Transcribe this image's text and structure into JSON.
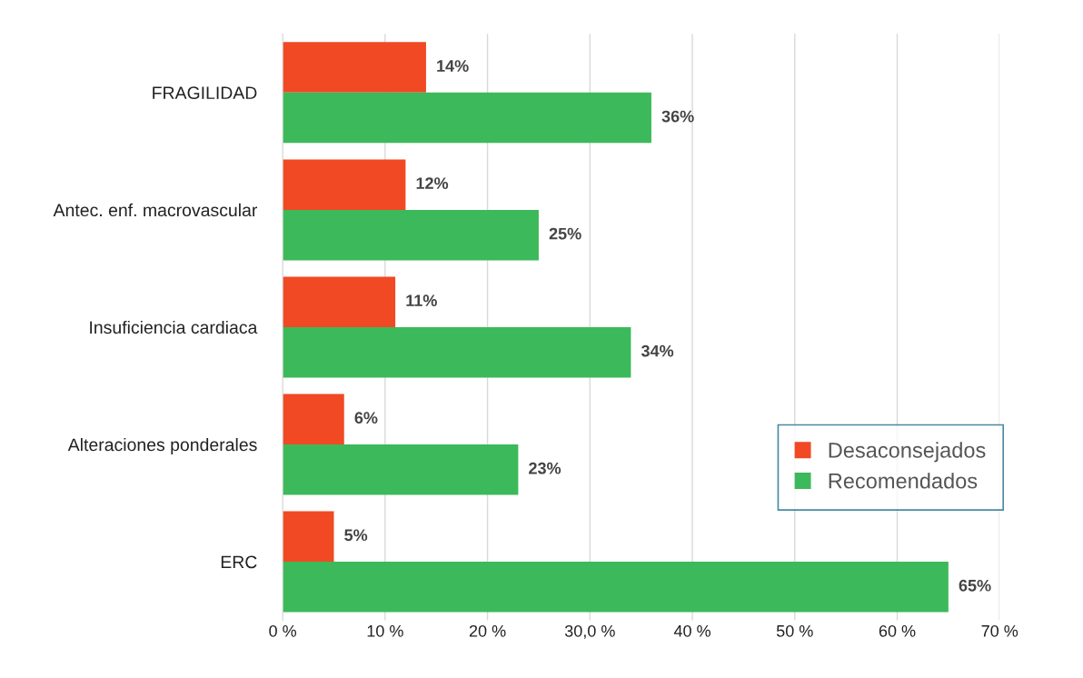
{
  "chart_data": {
    "type": "bar",
    "orientation": "horizontal",
    "categories": [
      "FRAGILIDAD",
      "Antec. enf. macrovascular",
      "Insuficiencia cardiaca",
      "Alteraciones ponderales",
      "ERC"
    ],
    "series": [
      {
        "name": "Desaconsejados",
        "color": "#f04923",
        "values": [
          14,
          12,
          11,
          6,
          5
        ],
        "value_labels": [
          "14%",
          "12%",
          "11%",
          "6%",
          "5%"
        ]
      },
      {
        "name": "Recomendados",
        "color": "#3cb95a",
        "values": [
          36,
          25,
          34,
          23,
          65
        ],
        "value_labels": [
          "36%",
          "25%",
          "34%",
          "23%",
          "65%"
        ]
      }
    ],
    "xlim": [
      0,
      70
    ],
    "xticks": [
      {
        "value": 0,
        "label": "0 %"
      },
      {
        "value": 10,
        "label": "10 %"
      },
      {
        "value": 20,
        "label": "20 %"
      },
      {
        "value": 30,
        "label": "30,0 %"
      },
      {
        "value": 40,
        "label": "40 %"
      },
      {
        "value": 50,
        "label": "50 %"
      },
      {
        "value": 60,
        "label": "60 %"
      },
      {
        "value": 70,
        "label": "70 %"
      }
    ],
    "grid": "x",
    "legend": "bottom right"
  }
}
